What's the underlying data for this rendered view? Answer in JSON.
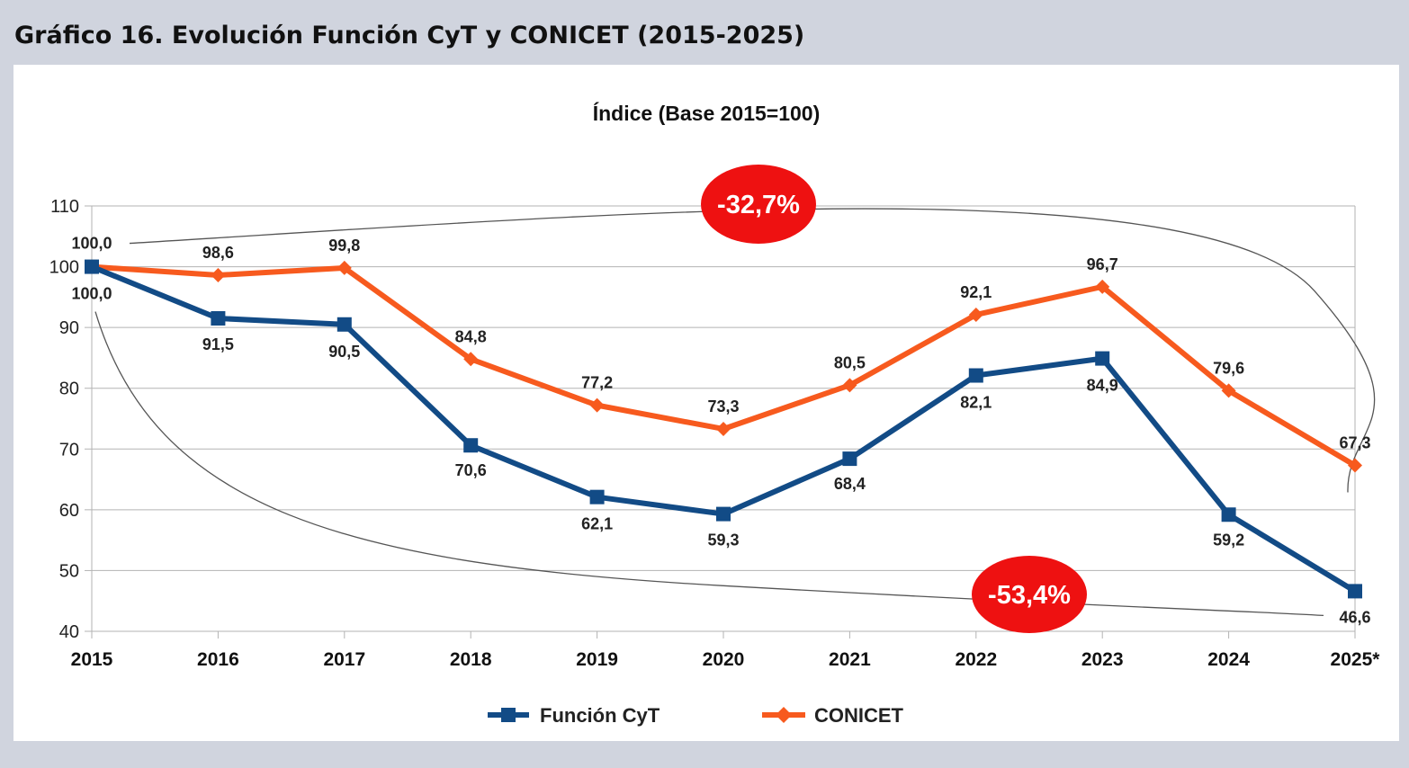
{
  "header": {
    "title": "Gráfico 16. Evolución Función CyT y CONICET (2015-2025)"
  },
  "chart_data": {
    "type": "line",
    "title": "Índice (Base 2015=100)",
    "x": [
      "2015",
      "2016",
      "2017",
      "2018",
      "2019",
      "2020",
      "2021",
      "2022",
      "2023",
      "2024",
      "2025*"
    ],
    "ylim": [
      40,
      110
    ],
    "yticks": [
      40,
      50,
      60,
      70,
      80,
      90,
      100,
      110
    ],
    "grid": true,
    "legend_position": "bottom",
    "series": [
      {
        "name": "Función CyT",
        "color": "#124b86",
        "marker": "square",
        "values": [
          100.0,
          91.5,
          90.5,
          70.6,
          62.1,
          59.3,
          68.4,
          82.1,
          84.9,
          59.2,
          46.6
        ],
        "labels": [
          "100,0",
          "91,5",
          "90,5",
          "70,6",
          "62,1",
          "59,3",
          "68,4",
          "82,1",
          "84,9",
          "59,2",
          "46,6"
        ]
      },
      {
        "name": "CONICET",
        "color": "#f75a1e",
        "marker": "diamond",
        "values": [
          100.0,
          98.6,
          99.8,
          84.8,
          77.2,
          73.3,
          80.5,
          92.1,
          96.7,
          79.6,
          67.3
        ],
        "labels": [
          "100,0",
          "98,6",
          "99,8",
          "84,8",
          "77,2",
          "73,3",
          "80,5",
          "92,1",
          "96,7",
          "79,6",
          "67,3"
        ]
      }
    ],
    "annotations": [
      {
        "text": "-32,7%",
        "series": "CONICET",
        "color": "#ee1111"
      },
      {
        "text": "-53,4%",
        "series": "Función CyT",
        "color": "#ee1111"
      }
    ]
  }
}
